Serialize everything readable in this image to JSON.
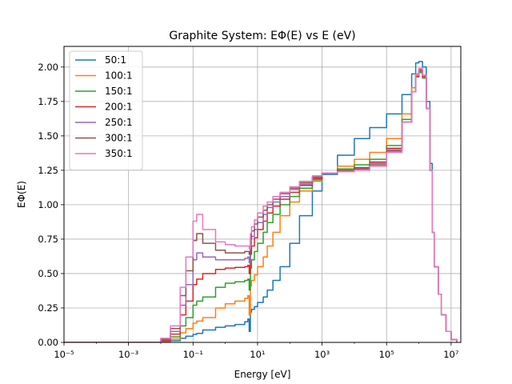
{
  "chart_data": {
    "type": "line",
    "title": "Graphite System: EΦ(E) vs E (eV)",
    "xlabel": "Energy [eV]",
    "ylabel": "EΦ(E)",
    "xscale": "log",
    "xlim": [
      1e-05,
      20000000
    ],
    "ylim": [
      0,
      2.15
    ],
    "grid": true,
    "legend_position": "top-left",
    "x_ticks": [
      {
        "value": 1e-05,
        "label": "10⁻⁵"
      },
      {
        "value": 0.001,
        "label": "10⁻³"
      },
      {
        "value": 0.1,
        "label": "10⁻¹"
      },
      {
        "value": 10,
        "label": "10¹"
      },
      {
        "value": 1000,
        "label": "10³"
      },
      {
        "value": 100000,
        "label": "10⁵"
      },
      {
        "value": 10000000,
        "label": "10⁷"
      }
    ],
    "y_ticks": [
      {
        "value": 0.0,
        "label": "0.00"
      },
      {
        "value": 0.25,
        "label": "0.25"
      },
      {
        "value": 0.5,
        "label": "0.50"
      },
      {
        "value": 0.75,
        "label": "0.75"
      },
      {
        "value": 1.0,
        "label": "1.00"
      },
      {
        "value": 1.25,
        "label": "1.25"
      },
      {
        "value": 1.5,
        "label": "1.50"
      },
      {
        "value": 1.75,
        "label": "1.75"
      },
      {
        "value": 2.0,
        "label": "2.00"
      }
    ],
    "series": [
      {
        "name": "50:1",
        "color": "#1f77b4",
        "x": [
          1e-05,
          0.001,
          0.005,
          0.01,
          0.02,
          0.04,
          0.06,
          0.1,
          0.13,
          0.2,
          0.5,
          1,
          2,
          4,
          5,
          5.5,
          6,
          6.5,
          8,
          10,
          15,
          20,
          30,
          50,
          100,
          200,
          500,
          1000,
          3000,
          10000,
          30000,
          100000,
          300000,
          600000,
          800000,
          1000000,
          1300000,
          1700000,
          2200000,
          2600000,
          3000000,
          4000000,
          5000000,
          7000000,
          10000000,
          15000000
        ],
        "y": [
          0.0,
          0.0,
          0.0,
          0.003,
          0.012,
          0.03,
          0.045,
          0.058,
          0.065,
          0.09,
          0.11,
          0.12,
          0.13,
          0.15,
          0.17,
          0.08,
          0.22,
          0.24,
          0.26,
          0.29,
          0.33,
          0.38,
          0.45,
          0.55,
          0.72,
          0.92,
          1.1,
          1.22,
          1.36,
          1.48,
          1.56,
          1.66,
          1.8,
          1.95,
          2.03,
          2.04,
          2.0,
          1.75,
          1.3,
          0.8,
          0.55,
          0.35,
          0.2,
          0.08,
          0.02,
          0.0
        ]
      },
      {
        "name": "100:1",
        "color": "#ff7f0e",
        "x": [
          1e-05,
          0.001,
          0.005,
          0.01,
          0.02,
          0.04,
          0.06,
          0.1,
          0.13,
          0.2,
          0.5,
          1,
          2,
          4,
          5,
          5.5,
          6,
          6.5,
          8,
          10,
          15,
          20,
          30,
          50,
          100,
          200,
          500,
          1000,
          3000,
          10000,
          30000,
          100000,
          300000,
          600000,
          800000,
          1000000,
          1300000,
          1700000,
          2200000,
          2600000,
          3000000,
          4000000,
          5000000,
          7000000,
          10000000,
          15000000
        ],
        "y": [
          0.0,
          0.0,
          0.0,
          0.006,
          0.025,
          0.07,
          0.1,
          0.14,
          0.155,
          0.18,
          0.25,
          0.28,
          0.3,
          0.32,
          0.34,
          0.2,
          0.41,
          0.45,
          0.49,
          0.55,
          0.62,
          0.7,
          0.8,
          0.92,
          1.02,
          1.1,
          1.17,
          1.23,
          1.28,
          1.33,
          1.38,
          1.48,
          1.66,
          1.85,
          1.95,
          1.97,
          1.93,
          1.7,
          1.25,
          0.8,
          0.55,
          0.35,
          0.2,
          0.08,
          0.02,
          0.0
        ]
      },
      {
        "name": "150:1",
        "color": "#2ca02c",
        "x": [
          1e-05,
          0.001,
          0.005,
          0.01,
          0.02,
          0.04,
          0.06,
          0.1,
          0.13,
          0.2,
          0.5,
          1,
          2,
          4,
          5,
          5.5,
          6,
          6.5,
          8,
          10,
          15,
          20,
          30,
          50,
          100,
          200,
          500,
          1000,
          3000,
          10000,
          30000,
          100000,
          300000,
          600000,
          800000,
          1000000,
          1300000,
          1700000,
          2200000,
          2600000,
          3000000,
          4000000,
          5000000,
          7000000,
          10000000,
          15000000
        ],
        "y": [
          0.0,
          0.0,
          0.0,
          0.01,
          0.04,
          0.12,
          0.18,
          0.27,
          0.3,
          0.33,
          0.4,
          0.43,
          0.44,
          0.45,
          0.46,
          0.38,
          0.54,
          0.6,
          0.66,
          0.72,
          0.8,
          0.87,
          0.93,
          1.0,
          1.06,
          1.12,
          1.18,
          1.23,
          1.26,
          1.29,
          1.33,
          1.43,
          1.62,
          1.82,
          1.93,
          1.96,
          1.92,
          1.7,
          1.25,
          0.8,
          0.55,
          0.35,
          0.2,
          0.08,
          0.02,
          0.0
        ]
      },
      {
        "name": "200:1",
        "color": "#d62728",
        "x": [
          1e-05,
          0.001,
          0.005,
          0.01,
          0.02,
          0.04,
          0.06,
          0.1,
          0.13,
          0.2,
          0.5,
          1,
          2,
          4,
          5,
          5.5,
          6,
          6.5,
          8,
          10,
          15,
          20,
          30,
          50,
          100,
          200,
          500,
          1000,
          3000,
          10000,
          30000,
          100000,
          300000,
          600000,
          800000,
          1000000,
          1300000,
          1700000,
          2200000,
          2600000,
          3000000,
          4000000,
          5000000,
          7000000,
          10000000,
          15000000
        ],
        "y": [
          0.0,
          0.0,
          0.0,
          0.015,
          0.06,
          0.2,
          0.3,
          0.42,
          0.46,
          0.5,
          0.53,
          0.54,
          0.545,
          0.55,
          0.56,
          0.5,
          0.64,
          0.7,
          0.76,
          0.82,
          0.88,
          0.94,
          0.99,
          1.04,
          1.09,
          1.14,
          1.19,
          1.23,
          1.25,
          1.27,
          1.31,
          1.41,
          1.6,
          1.82,
          1.93,
          1.97,
          1.93,
          1.7,
          1.25,
          0.8,
          0.55,
          0.35,
          0.2,
          0.08,
          0.02,
          0.0
        ]
      },
      {
        "name": "250:1",
        "color": "#9467bd",
        "x": [
          1e-05,
          0.001,
          0.005,
          0.01,
          0.02,
          0.04,
          0.06,
          0.1,
          0.13,
          0.2,
          0.5,
          1,
          2,
          4,
          5,
          5.5,
          6,
          6.5,
          8,
          10,
          15,
          20,
          30,
          50,
          100,
          200,
          500,
          1000,
          3000,
          10000,
          30000,
          100000,
          300000,
          600000,
          800000,
          1000000,
          1300000,
          1700000,
          2200000,
          2600000,
          3000000,
          4000000,
          5000000,
          7000000,
          10000000,
          15000000
        ],
        "y": [
          0.0,
          0.0,
          0.0,
          0.02,
          0.08,
          0.27,
          0.42,
          0.6,
          0.65,
          0.62,
          0.6,
          0.6,
          0.6,
          0.61,
          0.62,
          0.58,
          0.71,
          0.77,
          0.82,
          0.87,
          0.93,
          0.98,
          1.02,
          1.06,
          1.11,
          1.15,
          1.2,
          1.23,
          1.25,
          1.26,
          1.3,
          1.4,
          1.6,
          1.82,
          1.94,
          1.98,
          1.94,
          1.7,
          1.25,
          0.8,
          0.55,
          0.35,
          0.2,
          0.08,
          0.02,
          0.0
        ]
      },
      {
        "name": "300:1",
        "color": "#8c564b",
        "x": [
          1e-05,
          0.001,
          0.005,
          0.01,
          0.02,
          0.04,
          0.06,
          0.1,
          0.13,
          0.2,
          0.5,
          1,
          2,
          4,
          5,
          5.5,
          6,
          6.5,
          8,
          10,
          15,
          20,
          30,
          50,
          100,
          200,
          500,
          1000,
          3000,
          10000,
          30000,
          100000,
          300000,
          600000,
          800000,
          1000000,
          1300000,
          1700000,
          2200000,
          2600000,
          3000000,
          4000000,
          5000000,
          7000000,
          10000000,
          15000000
        ],
        "y": [
          0.0,
          0.0,
          0.0,
          0.025,
          0.1,
          0.34,
          0.52,
          0.74,
          0.79,
          0.72,
          0.67,
          0.65,
          0.65,
          0.66,
          0.66,
          0.64,
          0.75,
          0.81,
          0.86,
          0.91,
          0.96,
          1.0,
          1.04,
          1.08,
          1.12,
          1.16,
          1.2,
          1.23,
          1.25,
          1.26,
          1.29,
          1.39,
          1.6,
          1.82,
          1.94,
          1.98,
          1.94,
          1.7,
          1.25,
          0.8,
          0.55,
          0.35,
          0.2,
          0.08,
          0.02,
          0.0
        ]
      },
      {
        "name": "350:1",
        "color": "#e377c2",
        "x": [
          1e-05,
          0.001,
          0.005,
          0.01,
          0.02,
          0.04,
          0.06,
          0.1,
          0.13,
          0.2,
          0.5,
          1,
          2,
          4,
          5,
          5.5,
          6,
          6.5,
          8,
          10,
          15,
          20,
          30,
          50,
          100,
          200,
          500,
          1000,
          3000,
          10000,
          30000,
          100000,
          300000,
          600000,
          800000,
          1000000,
          1300000,
          1700000,
          2200000,
          2600000,
          3000000,
          4000000,
          5000000,
          7000000,
          10000000,
          15000000
        ],
        "y": [
          0.0,
          0.0,
          0.0,
          0.03,
          0.12,
          0.4,
          0.62,
          0.88,
          0.93,
          0.82,
          0.73,
          0.71,
          0.7,
          0.7,
          0.7,
          0.68,
          0.79,
          0.84,
          0.89,
          0.94,
          0.99,
          1.02,
          1.06,
          1.09,
          1.13,
          1.17,
          1.21,
          1.23,
          1.24,
          1.25,
          1.28,
          1.38,
          1.6,
          1.82,
          1.94,
          1.99,
          1.94,
          1.7,
          1.25,
          0.8,
          0.55,
          0.35,
          0.2,
          0.08,
          0.02,
          0.0
        ]
      }
    ]
  }
}
